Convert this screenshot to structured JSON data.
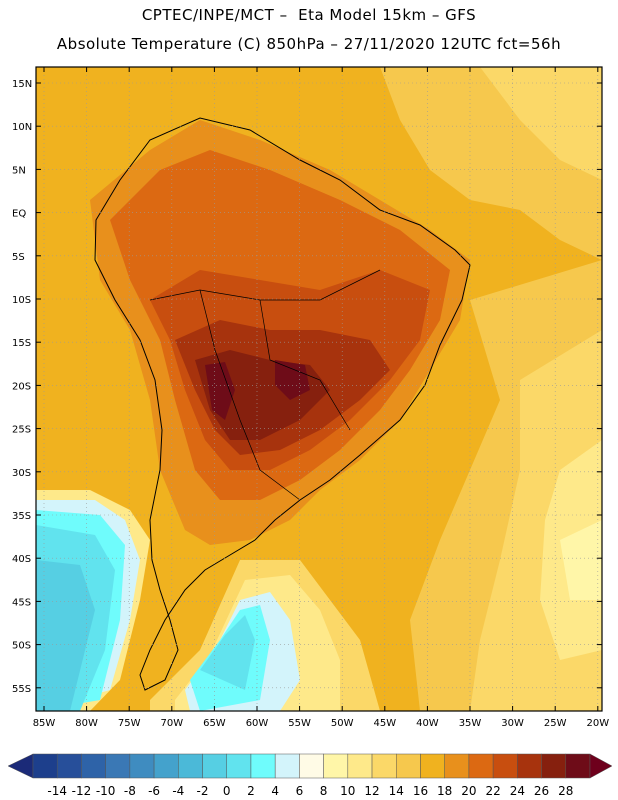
{
  "header": {
    "line1": "CPTEC/INPE/MCT –  Eta Model 15km – GFS",
    "line2": "Absolute Temperature (C) 850hPa – 27/11/2020 12UTC fct=56h"
  },
  "map": {
    "lat_labels": [
      "15N",
      "10N",
      "5N",
      "EQ",
      "5S",
      "10S",
      "15S",
      "20S",
      "25S",
      "30S",
      "35S",
      "40S",
      "45S",
      "50S",
      "55S"
    ],
    "lon_labels": [
      "85W",
      "80W",
      "75W",
      "70W",
      "65W",
      "60W",
      "55W",
      "50W",
      "45W",
      "40W",
      "35W",
      "30W",
      "25W",
      "20W"
    ]
  },
  "colorbar": {
    "labels": [
      "-14",
      "-12",
      "-10",
      "-8",
      "-6",
      "-4",
      "-2",
      "0",
      "2",
      "4",
      "6",
      "8",
      "10",
      "12",
      "14",
      "16",
      "18",
      "20",
      "22",
      "24",
      "26",
      "28"
    ],
    "colors": [
      "#1d3f8c",
      "#274f9a",
      "#2e63a8",
      "#3a78b5",
      "#3f8cc0",
      "#44a2cc",
      "#4bb9d8",
      "#56cfe3",
      "#61e3ee",
      "#6ffcfc",
      "#d3f4fb",
      "#fffbe6",
      "#fff6a8",
      "#fee98a",
      "#fbd868",
      "#f6c84d",
      "#f0b21f",
      "#e8901c",
      "#dc6912",
      "#c84e0f",
      "#a7330d",
      "#86200e",
      "#6e0c18"
    ],
    "low_color": "#1b2a78",
    "high_color": "#6e001c"
  }
}
